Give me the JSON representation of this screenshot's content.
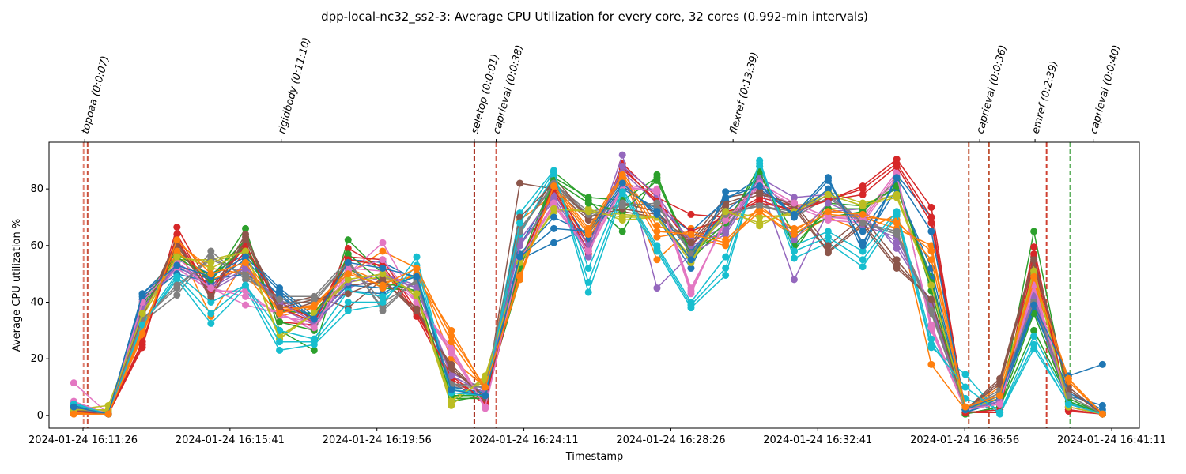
{
  "chart_data": {
    "type": "line",
    "title": "dpp-local-nc32_ss2-3: Average CPU Utilization for every core, 32 cores (0.992-min intervals)",
    "x_label": "Timestamp",
    "y_label": "Average CPU utilization %",
    "x": [
      "2024-01-24 16:11:10",
      "2024-01-24 16:12:10",
      "2024-01-24 16:13:09",
      "2024-01-24 16:14:09",
      "2024-01-24 16:15:08",
      "2024-01-24 16:16:08",
      "2024-01-24 16:17:07",
      "2024-01-24 16:18:07",
      "2024-01-24 16:19:06",
      "2024-01-24 16:20:06",
      "2024-01-24 16:21:05",
      "2024-01-24 16:22:05",
      "2024-01-24 16:23:04",
      "2024-01-24 16:24:04",
      "2024-01-24 16:25:03",
      "2024-01-24 16:26:03",
      "2024-01-24 16:27:02",
      "2024-01-24 16:28:02",
      "2024-01-24 16:29:01",
      "2024-01-24 16:30:01",
      "2024-01-24 16:31:00",
      "2024-01-24 16:32:00",
      "2024-01-24 16:32:59",
      "2024-01-24 16:33:59",
      "2024-01-24 16:34:58",
      "2024-01-24 16:35:58",
      "2024-01-24 16:36:57",
      "2024-01-24 16:37:57",
      "2024-01-24 16:38:56",
      "2024-01-24 16:39:56",
      "2024-01-24 16:40:55"
    ],
    "xlim": [
      "2024-01-24 16:10:27",
      "2024-01-24 16:41:59"
    ],
    "xticks": [
      "2024-01-24 16:11:26",
      "2024-01-24 16:15:41",
      "2024-01-24 16:19:56",
      "2024-01-24 16:24:11",
      "2024-01-24 16:28:26",
      "2024-01-24 16:32:41",
      "2024-01-24 16:36:56",
      "2024-01-24 16:41:11"
    ],
    "ylim": [
      -4.5,
      96.5
    ],
    "yticks": [
      0,
      20,
      40,
      60,
      80
    ],
    "grid": false,
    "stages": [
      {
        "label": "topoaa (0:0:07)",
        "time": "2024-01-24 16:11:29"
      },
      {
        "label": "rigidbody (0:11:10)",
        "time": "2024-01-24 16:17:10"
      },
      {
        "label": "seletop (0:0:01)",
        "time": "2024-01-24 16:22:45"
      },
      {
        "label": "caprieval (0:0:38)",
        "time": "2024-01-24 16:23:23"
      },
      {
        "label": "flexref (0:13:39)",
        "time": "2024-01-24 16:30:14"
      },
      {
        "label": "caprieval (0:0:36)",
        "time": "2024-01-24 16:37:22"
      },
      {
        "label": "emref (0:2:39)",
        "time": "2024-01-24 16:38:58"
      },
      {
        "label": "caprieval (0:0:40)",
        "time": "2024-01-24 16:40:39"
      }
    ],
    "vlines": [
      {
        "time": "2024-01-24 16:11:27",
        "color": "#e08070"
      },
      {
        "time": "2024-01-24 16:11:34",
        "color": "#c8503c"
      },
      {
        "time": "2024-01-24 16:22:45",
        "color": "#a02010"
      },
      {
        "time": "2024-01-24 16:23:23",
        "color": "#d06050"
      },
      {
        "time": "2024-01-24 16:37:03",
        "color": "#c05030"
      },
      {
        "time": "2024-01-24 16:37:38",
        "color": "#c05030"
      },
      {
        "time": "2024-01-24 16:39:18",
        "color": "#d04030"
      },
      {
        "time": "2024-01-24 16:39:59",
        "color": "#60b060"
      }
    ],
    "series": [
      {
        "color": "#1f77b4",
        "values": [
          3,
          0.5,
          43,
          55,
          50,
          57,
          45,
          35,
          55,
          54,
          48,
          8,
          7,
          55,
          61,
          66,
          83,
          70,
          52,
          79,
          80,
          71,
          84,
          58,
          85,
          70,
          2,
          8,
          41,
          7,
          3.5
        ]
      },
      {
        "color": "#ff7f0e",
        "values": [
          1,
          0.5,
          30,
          60,
          35,
          55,
          38,
          38,
          50,
          58,
          52,
          20,
          10,
          69,
          78,
          62,
          85,
          55,
          66,
          68,
          72,
          63,
          70,
          65,
          71,
          18,
          2,
          10,
          48,
          13,
          0.5
        ]
      },
      {
        "color": "#2ca02c",
        "values": [
          2,
          0.5,
          40,
          58,
          47,
          66,
          30,
          23,
          62,
          50,
          43,
          5,
          7,
          48,
          86,
          76,
          65,
          85,
          55,
          67,
          88,
          58,
          75,
          74,
          80,
          49,
          0.5,
          3,
          65,
          5,
          0.5
        ]
      },
      {
        "color": "#d62728",
        "values": [
          1,
          0.5,
          24,
          66.5,
          45,
          61,
          33,
          32,
          59,
          52,
          35,
          12,
          4,
          52,
          79,
          57,
          89,
          77,
          71,
          70,
          77,
          74,
          76,
          81,
          90.5,
          73.5,
          1,
          1,
          59.5,
          1.5,
          0.5
        ]
      },
      {
        "color": "#9467bd",
        "values": [
          2,
          0.5,
          38,
          52,
          44,
          51,
          41,
          34,
          48,
          50,
          46,
          15,
          9,
          60,
          76,
          56,
          92,
          45,
          57,
          64,
          82,
          48,
          72,
          73,
          59,
          40,
          2,
          5,
          43,
          4,
          0.5
        ]
      },
      {
        "color": "#8c564b",
        "values": [
          2,
          0.5,
          36,
          62,
          41,
          63,
          39,
          42,
          38,
          48,
          36,
          18,
          6,
          82,
          80,
          69,
          72,
          70,
          62,
          77,
          79,
          73,
          57.5,
          67,
          52,
          41,
          2,
          13,
          56,
          10,
          0.5
        ]
      },
      {
        "color": "#e377c2",
        "values": [
          11.5,
          0.5,
          41,
          56,
          45,
          39,
          36,
          30,
          50,
          61,
          40,
          22,
          2.5,
          56,
          75,
          59,
          82,
          79,
          43,
          70,
          82,
          75,
          70,
          70,
          86,
          30,
          2,
          4,
          45,
          2,
          0.5
        ]
      },
      {
        "color": "#7f7f7f",
        "values": [
          3,
          0.5,
          33,
          42.5,
          58,
          48,
          42,
          42,
          55,
          37,
          48,
          10,
          10,
          65,
          82,
          72,
          74,
          75,
          57,
          72,
          74,
          72,
          79,
          68,
          64,
          36,
          2,
          9,
          39,
          6,
          0.5
        ]
      },
      {
        "color": "#bcbd22",
        "values": [
          2,
          3.5,
          35,
          55,
          55,
          58,
          27,
          37,
          48,
          50,
          42,
          3.5,
          14,
          55,
          72,
          73,
          69,
          70,
          54,
          73,
          67,
          73,
          79,
          75,
          78,
          47,
          2,
          7,
          52,
          3,
          0.5
        ]
      },
      {
        "color": "#17becf",
        "values": [
          4.5,
          0.5,
          32,
          48,
          32.5,
          45,
          23,
          25,
          37,
          39,
          56,
          8,
          7,
          71.5,
          86.5,
          43.5,
          78,
          58,
          38,
          49.5,
          90,
          55.5,
          61,
          52.5,
          70.5,
          24,
          14.5,
          0.5,
          23.5,
          4.5,
          0.5
        ]
      },
      {
        "color": "#1f77b4",
        "values": [
          3.5,
          0.5,
          42,
          52,
          48,
          50,
          43,
          33,
          44,
          43,
          50,
          9,
          8,
          60,
          80,
          62,
          80,
          73,
          65,
          76,
          84,
          70,
          83,
          61,
          80,
          52,
          1,
          5,
          37,
          9,
          1
        ]
      },
      {
        "color": "#ff7f0e",
        "values": [
          0.5,
          0.5,
          28,
          61,
          52,
          50,
          35,
          38,
          52,
          47,
          49,
          30,
          9,
          48,
          82,
          66,
          86,
          67,
          63,
          60,
          74,
          65,
          73,
          70,
          66,
          60,
          3,
          6,
          46,
          12,
          0.5
        ]
      },
      {
        "color": "#2ca02c",
        "values": [
          2,
          0.5,
          39,
          57,
          49,
          62,
          37,
          36,
          52,
          45,
          44,
          6,
          6,
          54,
          84,
          77,
          76,
          84,
          58,
          65,
          85,
          64,
          70,
          72,
          83,
          44,
          0.5,
          3,
          30,
          6,
          0.5
        ]
      },
      {
        "color": "#d62728",
        "values": [
          1,
          0.5,
          25,
          64,
          43,
          58,
          40,
          34,
          56,
          55,
          37,
          13,
          5,
          52,
          82,
          60,
          87,
          76,
          60,
          72,
          75,
          73,
          76,
          78,
          88,
          68,
          1,
          2,
          54,
          2,
          0.5
        ]
      },
      {
        "color": "#9467bd",
        "values": [
          1.5,
          0.5,
          37,
          54,
          46,
          53,
          38,
          32,
          45,
          49,
          45,
          14,
          8,
          62,
          78,
          60,
          86,
          75,
          62,
          66,
          84,
          77,
          78,
          67,
          63,
          38,
          2,
          5,
          40,
          3,
          0.5
        ]
      },
      {
        "color": "#8c564b",
        "values": [
          2.5,
          0.5,
          35,
          60,
          43,
          64,
          36,
          40,
          46,
          47,
          38,
          16,
          7,
          64,
          84,
          70,
          75,
          72,
          60,
          74,
          78,
          75,
          60,
          70,
          55,
          40,
          2,
          11,
          54,
          9,
          0.5
        ]
      },
      {
        "color": "#e377c2",
        "values": [
          3,
          0.5,
          39,
          52,
          44,
          44,
          35,
          33,
          52,
          51,
          40,
          24,
          3,
          55,
          74,
          58,
          80,
          80,
          45,
          68,
          81,
          74,
          69,
          68,
          84,
          32,
          2,
          4,
          47,
          3,
          0.5
        ]
      },
      {
        "color": "#7f7f7f",
        "values": [
          2,
          0.5,
          34,
          46,
          55,
          50,
          40,
          40,
          54,
          40,
          47,
          11,
          11,
          66,
          81,
          70,
          75,
          74,
          58,
          70,
          75,
          70,
          77,
          68,
          65,
          38,
          2,
          8,
          41,
          7,
          0.5
        ]
      },
      {
        "color": "#bcbd22",
        "values": [
          2,
          1.5,
          36,
          57,
          52,
          58,
          28,
          36,
          47,
          49,
          43,
          6,
          12,
          53,
          73,
          72,
          71,
          70,
          56,
          72,
          70,
          71,
          78,
          74,
          77,
          46,
          2,
          6,
          50,
          4,
          0.5
        ]
      },
      {
        "color": "#17becf",
        "values": [
          4,
          0.5,
          33,
          50,
          40,
          46,
          30,
          27,
          44,
          42,
          50,
          9,
          8,
          64,
          85,
          52,
          80,
          60,
          40,
          56,
          88,
          60,
          65,
          58,
          72,
          27,
          6,
          1,
          28,
          5,
          0.5
        ]
      },
      {
        "color": "#1f77b4",
        "values": [
          3,
          0.5,
          41,
          50,
          47,
          55,
          42,
          34,
          46,
          45,
          49,
          10,
          8,
          57,
          70,
          64,
          81,
          72,
          58,
          72,
          82,
          70,
          80,
          65,
          82,
          48,
          1,
          6,
          38,
          8,
          2
        ]
      },
      {
        "color": "#ff7f0e",
        "values": [
          1,
          0.5,
          31,
          58,
          48,
          52,
          37,
          39,
          51,
          45,
          50,
          26,
          9,
          50,
          80,
          64,
          84,
          63,
          65,
          62,
          73,
          66,
          71,
          70,
          69,
          55,
          2,
          8,
          47,
          12,
          0.5
        ]
      },
      {
        "color": "#2ca02c",
        "values": [
          2,
          0.5,
          38,
          56,
          48,
          60,
          33,
          30,
          57,
          47,
          44,
          7,
          7,
          52,
          83,
          75,
          72,
          83,
          57,
          68,
          86,
          60,
          73,
          73,
          81,
          47,
          0.5,
          3,
          36,
          5,
          0.5
        ]
      },
      {
        "color": "#d62728",
        "values": [
          1.5,
          0.5,
          26,
          62,
          44,
          60,
          38,
          33,
          55,
          53,
          36,
          14,
          5,
          54,
          80,
          58,
          88,
          75,
          65,
          70,
          76,
          72,
          76,
          80,
          89,
          70,
          1,
          2,
          57,
          2,
          0.5
        ]
      },
      {
        "color": "#9467bd",
        "values": [
          2,
          0.5,
          38,
          53,
          45,
          52,
          40,
          33,
          47,
          50,
          45,
          14,
          8,
          60,
          77,
          58,
          88,
          78,
          60,
          65,
          83,
          62,
          75,
          70,
          61,
          39,
          2,
          5,
          42,
          4,
          0.5
        ]
      },
      {
        "color": "#8c564b",
        "values": [
          2,
          0.5,
          35,
          61,
          42,
          62,
          38,
          41,
          43,
          48,
          37,
          17,
          6,
          70,
          82,
          70,
          73,
          71,
          61,
          75,
          79,
          74,
          58,
          68,
          53,
          41,
          2,
          12,
          55,
          9,
          0.5
        ]
      },
      {
        "color": "#e377c2",
        "values": [
          5,
          0.5,
          40,
          54,
          45,
          42,
          36,
          31,
          51,
          55,
          40,
          23,
          3,
          55,
          75,
          58,
          81,
          79,
          44,
          69,
          82,
          75,
          70,
          69,
          85,
          31,
          2,
          4,
          46,
          3,
          0.5
        ]
      },
      {
        "color": "#7f7f7f",
        "values": [
          2.5,
          0.5,
          34,
          45,
          56,
          49,
          41,
          41,
          54,
          38,
          48,
          11,
          10,
          65,
          82,
          71,
          74,
          75,
          57,
          71,
          74,
          71,
          78,
          68,
          64,
          37,
          2,
          8,
          40,
          7,
          0.5
        ]
      },
      {
        "color": "#bcbd22",
        "values": [
          2,
          2,
          36,
          56,
          54,
          58,
          27,
          36,
          48,
          50,
          43,
          5,
          13,
          54,
          73,
          72,
          70,
          70,
          55,
          72,
          68,
          72,
          78,
          74,
          78,
          46,
          2,
          7,
          51,
          3,
          0.5
        ]
      },
      {
        "color": "#17becf",
        "values": [
          4,
          0.5,
          32,
          49,
          36,
          46,
          26,
          26,
          40,
          40,
          53,
          8,
          7,
          68,
          86,
          47,
          79,
          59,
          39,
          52,
          89,
          58,
          63,
          55,
          71,
          25,
          10,
          1,
          25,
          4,
          0.5
        ]
      },
      {
        "color": "#1f77b4",
        "values": [
          3,
          0.5,
          43,
          53,
          49,
          56,
          44,
          34,
          54,
          52,
          49,
          9,
          7,
          56,
          66,
          65,
          82,
          71,
          55,
          77,
          81,
          71,
          84,
          60,
          84,
          65,
          2,
          7,
          39,
          14,
          18
        ]
      },
      {
        "color": "#ff7f0e",
        "values": [
          0.5,
          0.5,
          29,
          62,
          50,
          54,
          36,
          39,
          50,
          46,
          52,
          28,
          10,
          49,
          81,
          65,
          85,
          65,
          64,
          61,
          72,
          64,
          72,
          71,
          68,
          58,
          3,
          7,
          49,
          13,
          0.5
        ]
      }
    ]
  }
}
